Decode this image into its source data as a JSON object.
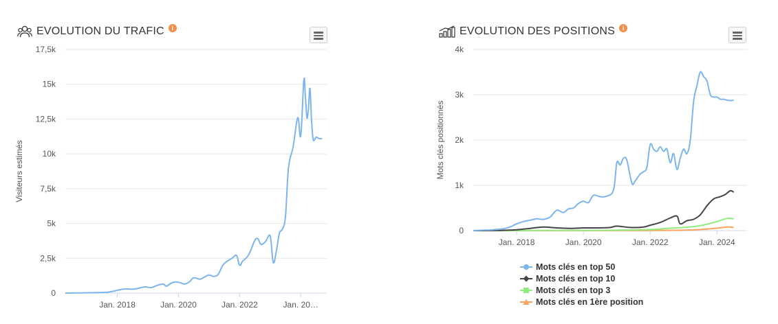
{
  "traffic": {
    "title": "EVOLUTION DU TRAFIC",
    "info": "i",
    "chart_data": {
      "type": "line",
      "title": "EVOLUTION DU TRAFIC",
      "ylabel": "Visiteurs estimés",
      "xlabel": "",
      "x_ticks": [
        "Jan. 2018",
        "Jan. 2020",
        "Jan. 2022",
        "Jan. 20…"
      ],
      "y_ticks": [
        "0",
        "2,5k",
        "5k",
        "7,5k",
        "10k",
        "12,5k",
        "15k",
        "17,5k"
      ],
      "ylim": [
        0,
        17500
      ],
      "xlim": [
        2016.3,
        2024.85
      ],
      "grid": true,
      "color": "#7cb5ec",
      "series": [
        {
          "x": [
            2016.3,
            2016.6,
            2016.9,
            2017.2,
            2017.5,
            2017.7,
            2017.9,
            2018.1,
            2018.3,
            2018.5,
            2018.7,
            2018.9,
            2019.1,
            2019.3,
            2019.5,
            2019.6,
            2019.75,
            2019.9,
            2020.05,
            2020.2,
            2020.35,
            2020.5,
            2020.7,
            2020.85,
            2021.0,
            2021.15,
            2021.3,
            2021.45,
            2021.6,
            2021.75,
            2021.9,
            2022.0,
            2022.1,
            2022.25,
            2022.35,
            2022.5,
            2022.6,
            2022.7,
            2022.85,
            2023.0,
            2023.1,
            2023.2,
            2023.3,
            2023.4,
            2023.5,
            2023.6,
            2023.75,
            2023.9,
            2024.0,
            2024.1,
            2024.15,
            2024.2,
            2024.25,
            2024.3,
            2024.35,
            2024.4,
            2024.45,
            2024.5,
            2024.6,
            2024.7
          ],
          "y": [
            0,
            10,
            20,
            30,
            50,
            70,
            150,
            250,
            300,
            280,
            350,
            450,
            400,
            550,
            650,
            500,
            700,
            800,
            750,
            650,
            800,
            1100,
            1000,
            1150,
            1300,
            1200,
            1350,
            2000,
            2300,
            2500,
            2700,
            2000,
            2300,
            2600,
            3000,
            3800,
            3900,
            3500,
            3700,
            4100,
            2200,
            3000,
            4300,
            4600,
            5500,
            9000,
            10500,
            12600,
            11300,
            15300,
            14200,
            12600,
            13200,
            14700,
            12500,
            11100,
            11000,
            11200,
            11100,
            11100
          ]
        }
      ]
    }
  },
  "positions": {
    "title": "EVOLUTION DES POSITIONS",
    "info": "i",
    "chart_data": {
      "type": "line",
      "title": "EVOLUTION DES POSITIONS",
      "ylabel": "Mots clés positionnés",
      "xlabel": "",
      "x_ticks": [
        "Jan. 2018",
        "Jan. 2020",
        "Jan. 2022",
        "Jan. 2024"
      ],
      "y_ticks": [
        "0",
        "1k",
        "2k",
        "3k",
        "4k"
      ],
      "ylim": [
        0,
        4000
      ],
      "xlim": [
        2016.7,
        2024.9
      ],
      "grid": true,
      "legend_position": "bottom",
      "series": [
        {
          "name": "Mots clés en top 50",
          "color": "#7cb5ec",
          "marker": "circle",
          "x": [
            2016.7,
            2017.0,
            2017.3,
            2017.6,
            2017.8,
            2018.0,
            2018.2,
            2018.4,
            2018.6,
            2018.8,
            2019.0,
            2019.2,
            2019.4,
            2019.55,
            2019.7,
            2019.85,
            2020.0,
            2020.15,
            2020.3,
            2020.5,
            2020.7,
            2020.9,
            2021.0,
            2021.1,
            2021.2,
            2021.3,
            2021.45,
            2021.55,
            2021.7,
            2021.8,
            2021.9,
            2022.0,
            2022.1,
            2022.2,
            2022.3,
            2022.4,
            2022.5,
            2022.6,
            2022.7,
            2022.8,
            2022.9,
            2023.0,
            2023.1,
            2023.2,
            2023.3,
            2023.4,
            2023.5,
            2023.6,
            2023.7,
            2023.8,
            2023.9,
            2024.0,
            2024.1,
            2024.2,
            2024.3,
            2024.4,
            2024.5
          ],
          "y": [
            0,
            10,
            20,
            40,
            80,
            150,
            200,
            230,
            260,
            250,
            300,
            450,
            400,
            480,
            500,
            600,
            650,
            620,
            780,
            750,
            760,
            900,
            1500,
            1450,
            1600,
            1550,
            1050,
            1100,
            1250,
            1300,
            1400,
            1900,
            1800,
            1750,
            1850,
            1750,
            1800,
            1500,
            1700,
            1350,
            1600,
            1800,
            1700,
            2000,
            2850,
            3200,
            3500,
            3400,
            3300,
            3000,
            2950,
            2950,
            2900,
            2900,
            2880,
            2870,
            2880
          ]
        },
        {
          "name": "Mots clés en top 10",
          "color": "#434348",
          "marker": "diamond",
          "x": [
            2016.7,
            2017.5,
            2018.0,
            2018.4,
            2018.8,
            2019.2,
            2019.6,
            2020.0,
            2020.4,
            2020.8,
            2021.0,
            2021.4,
            2021.8,
            2022.0,
            2022.3,
            2022.6,
            2022.8,
            2022.9,
            2023.1,
            2023.3,
            2023.5,
            2023.7,
            2023.9,
            2024.1,
            2024.25,
            2024.4,
            2024.5
          ],
          "y": [
            0,
            5,
            20,
            50,
            80,
            60,
            50,
            60,
            60,
            70,
            100,
            70,
            80,
            120,
            180,
            280,
            320,
            150,
            220,
            250,
            350,
            550,
            700,
            750,
            800,
            880,
            850
          ]
        },
        {
          "name": "Mots clés en top 3",
          "color": "#90ed7d",
          "marker": "square",
          "x": [
            2016.7,
            2018.0,
            2020.0,
            2021.0,
            2022.0,
            2022.5,
            2023.0,
            2023.5,
            2024.0,
            2024.3,
            2024.5
          ],
          "y": [
            0,
            2,
            5,
            10,
            25,
            50,
            70,
            110,
            200,
            270,
            260
          ]
        },
        {
          "name": "Mots clés en 1ère position",
          "color": "#f7a35c",
          "marker": "triangle",
          "x": [
            2016.7,
            2018.0,
            2020.0,
            2022.0,
            2023.0,
            2023.5,
            2024.0,
            2024.3,
            2024.5
          ],
          "y": [
            0,
            0,
            1,
            5,
            10,
            25,
            55,
            80,
            70
          ]
        }
      ]
    }
  }
}
